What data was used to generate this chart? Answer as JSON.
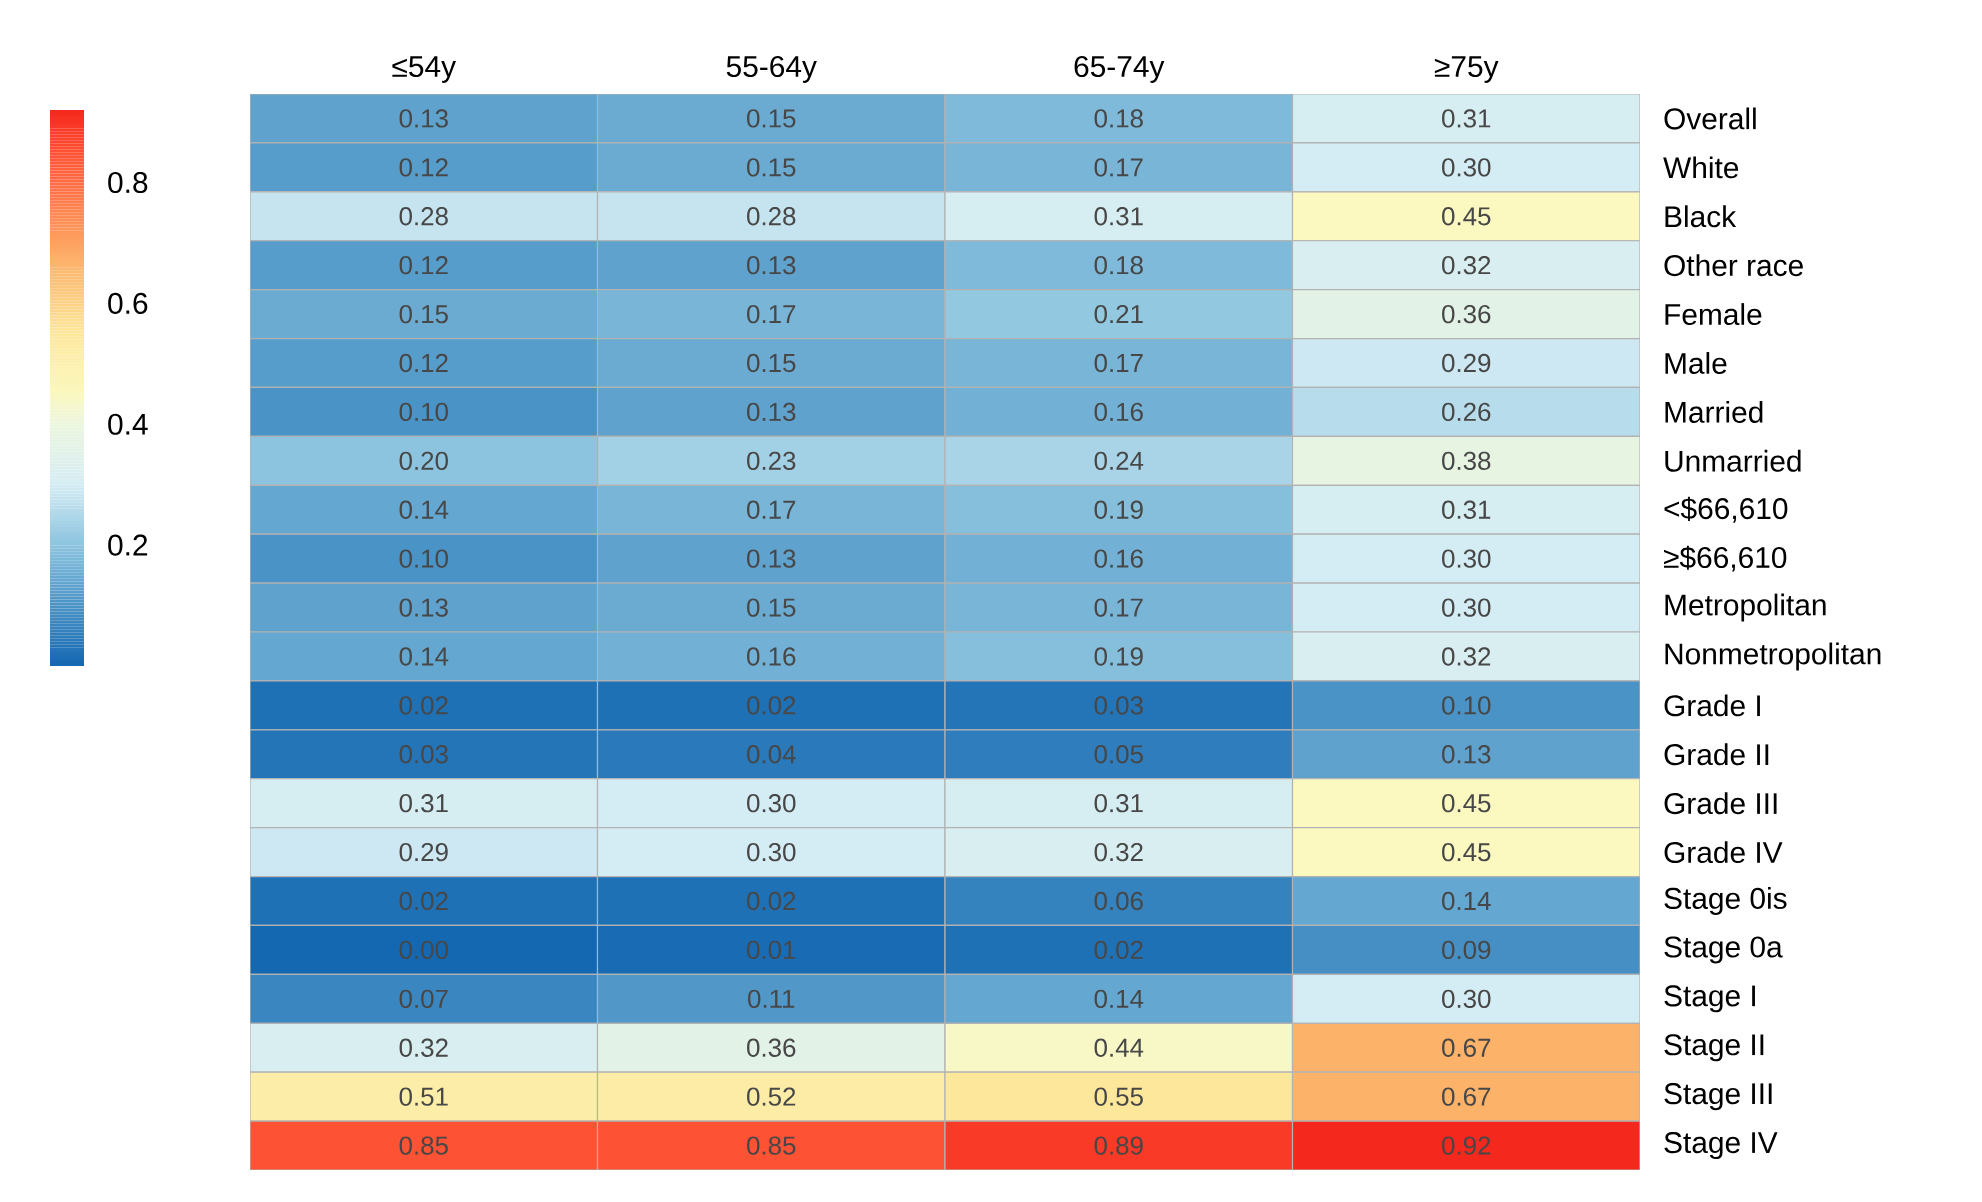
{
  "chart_data": {
    "type": "heatmap",
    "categories": [
      "≤54y",
      "55-64y",
      "65-74y",
      "≥75y"
    ],
    "y_categories": [
      "Overall",
      "White",
      "Black",
      "Other race",
      "Female",
      "Male",
      "Married",
      "Unmarried",
      "<$66,610",
      "≥$66,610",
      "Metropolitan",
      "Nonmetropolitan",
      "Grade I",
      "Grade II",
      "Grade III",
      "Grade IV",
      "Stage 0is",
      "Stage 0a",
      "Stage I",
      "Stage II",
      "Stage III",
      "Stage IV"
    ],
    "cells": [
      [
        0.13,
        0.15,
        0.18,
        0.31
      ],
      [
        0.12,
        0.15,
        0.17,
        0.3
      ],
      [
        0.28,
        0.28,
        0.31,
        0.45
      ],
      [
        0.12,
        0.13,
        0.18,
        0.32
      ],
      [
        0.15,
        0.17,
        0.21,
        0.36
      ],
      [
        0.12,
        0.15,
        0.17,
        0.29
      ],
      [
        0.1,
        0.13,
        0.16,
        0.26
      ],
      [
        0.2,
        0.23,
        0.24,
        0.38
      ],
      [
        0.14,
        0.17,
        0.19,
        0.31
      ],
      [
        0.1,
        0.13,
        0.16,
        0.3
      ],
      [
        0.13,
        0.15,
        0.17,
        0.3
      ],
      [
        0.14,
        0.16,
        0.19,
        0.32
      ],
      [
        0.02,
        0.02,
        0.03,
        0.1
      ],
      [
        0.03,
        0.04,
        0.05,
        0.13
      ],
      [
        0.31,
        0.3,
        0.31,
        0.45
      ],
      [
        0.29,
        0.3,
        0.32,
        0.45
      ],
      [
        0.02,
        0.02,
        0.06,
        0.14
      ],
      [
        0.0,
        0.01,
        0.02,
        0.09
      ],
      [
        0.07,
        0.11,
        0.14,
        0.3
      ],
      [
        0.32,
        0.36,
        0.44,
        0.67
      ],
      [
        0.51,
        0.52,
        0.55,
        0.67
      ],
      [
        0.85,
        0.85,
        0.89,
        0.92
      ]
    ],
    "cell_labels": [
      [
        "0.13",
        "0.15",
        "0.18",
        "0.31"
      ],
      [
        "0.12",
        "0.15",
        "0.17",
        "0.30"
      ],
      [
        "0.28",
        "0.28",
        "0.31",
        "0.45"
      ],
      [
        "0.12",
        "0.13",
        "0.18",
        "0.32"
      ],
      [
        "0.15",
        "0.17",
        "0.21",
        "0.36"
      ],
      [
        "0.12",
        "0.15",
        "0.17",
        "0.29"
      ],
      [
        "0.10",
        "0.13",
        "0.16",
        "0.26"
      ],
      [
        "0.20",
        "0.23",
        "0.24",
        "0.38"
      ],
      [
        "0.14",
        "0.17",
        "0.19",
        "0.31"
      ],
      [
        "0.10",
        "0.13",
        "0.16",
        "0.30"
      ],
      [
        "0.13",
        "0.15",
        "0.17",
        "0.30"
      ],
      [
        "0.14",
        "0.16",
        "0.19",
        "0.32"
      ],
      [
        "0.02",
        "0.02",
        "0.03",
        "0.10"
      ],
      [
        "0.03",
        "0.04",
        "0.05",
        "0.13"
      ],
      [
        "0.31",
        "0.30",
        "0.31",
        "0.45"
      ],
      [
        "0.29",
        "0.30",
        "0.32",
        "0.45"
      ],
      [
        "0.02",
        "0.02",
        "0.06",
        "0.14"
      ],
      [
        "0.00",
        "0.01",
        "0.02",
        "0.09"
      ],
      [
        "0.07",
        "0.11",
        "0.14",
        "0.30"
      ],
      [
        "0.32",
        "0.36",
        "0.44",
        "0.67"
      ],
      [
        "0.51",
        "0.52",
        "0.55",
        "0.67"
      ],
      [
        "0.85",
        "0.85",
        "0.89",
        "0.92"
      ]
    ],
    "clim": [
      0,
      0.92
    ],
    "cticks": [
      {
        "value": 0.2,
        "label": "0.2"
      },
      {
        "value": 0.4,
        "label": "0.4"
      },
      {
        "value": 0.6,
        "label": "0.6"
      },
      {
        "value": 0.8,
        "label": "0.8"
      }
    ]
  }
}
